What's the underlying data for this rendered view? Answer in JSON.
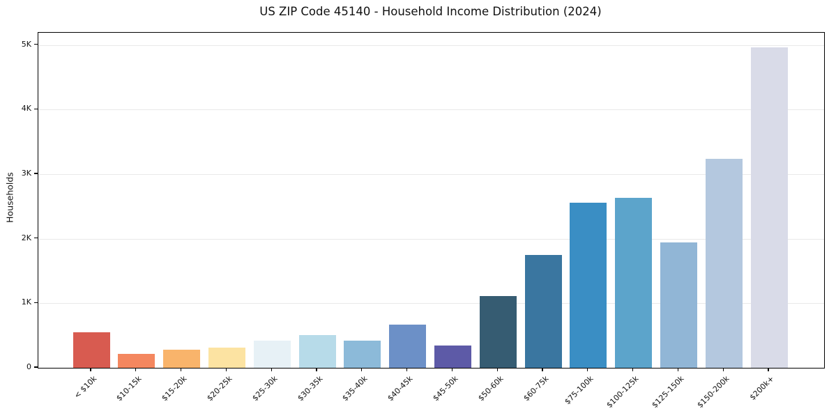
{
  "figure": {
    "title": "US ZIP Code 45140 - Household Income Distribution (2024)"
  },
  "chart_data": {
    "type": "bar",
    "title": "US ZIP Code 45140 - Household Income Distribution (2024)",
    "xlabel": "",
    "ylabel": "Households",
    "categories": [
      "< $10k",
      "$10-15k",
      "$15-20k",
      "$20-25k",
      "$25-30k",
      "$30-35k",
      "$35-40k",
      "$40-45k",
      "$45-50k",
      "$50-60k",
      "$60-75k",
      "$75-100k",
      "$100-125k",
      "$125-150k",
      "$150-200k",
      "$200k+"
    ],
    "values": [
      555,
      215,
      280,
      310,
      420,
      505,
      420,
      670,
      350,
      1115,
      1745,
      2555,
      2630,
      1945,
      3240,
      4960
    ],
    "bar_colors": [
      "#d85b50",
      "#f4875f",
      "#f9b46b",
      "#fce3a2",
      "#e7f1f6",
      "#b7dbe9",
      "#8cbad9",
      "#6c90c7",
      "#5d5aa7",
      "#365c72",
      "#3a76a0",
      "#3a8ec4",
      "#5ca4cb",
      "#91b6d6",
      "#b4c8df",
      "#d9dbe8"
    ],
    "ylim": [
      0,
      5190
    ],
    "yticks": [
      {
        "value": 0,
        "label": "0"
      },
      {
        "value": 1000,
        "label": "1K"
      },
      {
        "value": 2000,
        "label": "2K"
      },
      {
        "value": 3000,
        "label": "3K"
      },
      {
        "value": 4000,
        "label": "4K"
      },
      {
        "value": 5000,
        "label": "5K"
      }
    ],
    "grid": "horizontal",
    "legend": "none",
    "background": "#ffffff",
    "axis_color": "#000000",
    "gridline_color": "#e9e9e9"
  }
}
